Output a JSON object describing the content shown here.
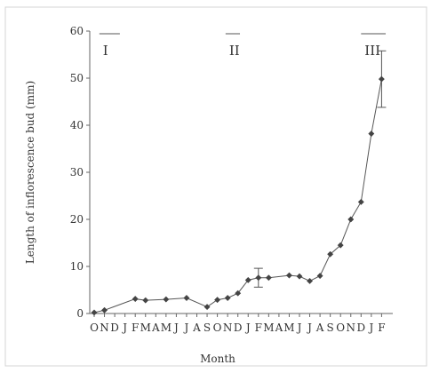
{
  "chart_data": {
    "type": "line",
    "xlabel": "Month",
    "ylabel": "Length of inflorescence bud (mm)",
    "ylim": [
      0,
      60
    ],
    "y_ticks": [
      0,
      10,
      20,
      30,
      40,
      50,
      60
    ],
    "y_tick_labels": [
      "0",
      "10",
      "20",
      "30",
      "40",
      "50",
      "60"
    ],
    "x_tick_labels": [
      "O",
      "N",
      "D",
      "J",
      "F",
      "M",
      "A",
      "M",
      "J",
      "J",
      "A",
      "S",
      "O",
      "N",
      "D",
      "J",
      "F",
      "M",
      "A",
      "M",
      "J",
      "J",
      "A",
      "S",
      "O",
      "N",
      "D",
      "J",
      "F"
    ],
    "grid": false,
    "legend": "none",
    "colors": {
      "line": "#555555",
      "marker": "#444444",
      "axis": "#666666"
    },
    "series": [
      {
        "values": [
          {
            "month": 0,
            "y": 0.2
          },
          {
            "month": 1,
            "y": 0.7
          },
          {
            "month": 4,
            "y": 3.1
          },
          {
            "month": 5,
            "y": 2.8
          },
          {
            "month": 7,
            "y": 3.0
          },
          {
            "month": 9,
            "y": 3.3
          },
          {
            "month": 11,
            "y": 1.4
          },
          {
            "month": 12,
            "y": 2.9
          },
          {
            "month": 13,
            "y": 3.3
          },
          {
            "month": 14,
            "y": 4.3
          },
          {
            "month": 15,
            "y": 7.1
          },
          {
            "month": 16,
            "y": 7.6,
            "err": 2.0
          },
          {
            "month": 17,
            "y": 7.6
          },
          {
            "month": 19,
            "y": 8.1
          },
          {
            "month": 20,
            "y": 7.9
          },
          {
            "month": 21,
            "y": 6.9
          },
          {
            "month": 22,
            "y": 8.0
          },
          {
            "month": 23,
            "y": 12.6
          },
          {
            "month": 24,
            "y": 14.5
          },
          {
            "month": 25,
            "y": 20.0
          },
          {
            "month": 26,
            "y": 23.7
          },
          {
            "month": 27,
            "y": 38.2
          },
          {
            "month": 28,
            "y": 49.8,
            "err": 6.0
          }
        ]
      }
    ],
    "regions": [
      {
        "label": "I",
        "from": 0.5,
        "to": 2.5
      },
      {
        "label": "II",
        "from": 12.8,
        "to": 14.2
      },
      {
        "label": "III",
        "from": 26.0,
        "to": 28.4
      }
    ]
  }
}
